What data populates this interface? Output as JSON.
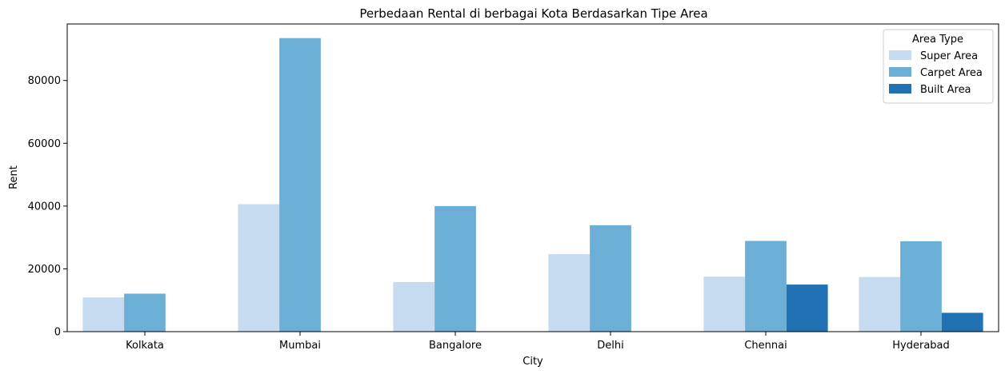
{
  "chart_data": {
    "type": "bar",
    "title": "Perbedaan Rental di berbagai Kota Berdasarkan Tipe Area",
    "xlabel": "City",
    "ylabel": "Rent",
    "categories": [
      "Kolkata",
      "Mumbai",
      "Bangalore",
      "Delhi",
      "Chennai",
      "Hyderabad"
    ],
    "series": [
      {
        "name": "Super Area",
        "color": "#c6dbef",
        "values": [
          10900,
          40600,
          15800,
          24700,
          17500,
          17400
        ]
      },
      {
        "name": "Carpet Area",
        "color": "#6baed6",
        "values": [
          12100,
          93500,
          40000,
          33900,
          28900,
          28800
        ]
      },
      {
        "name": "Built Area",
        "color": "#2171b5",
        "values": [
          null,
          null,
          null,
          null,
          15000,
          6000
        ]
      }
    ],
    "ylim": [
      0,
      98000
    ],
    "yticks": [
      0,
      20000,
      40000,
      60000,
      80000
    ],
    "ytick_labels": [
      "0",
      "20000",
      "40000",
      "60000",
      "80000"
    ],
    "grid": false,
    "legend": {
      "title": "Area Type",
      "position": "top-right"
    }
  }
}
